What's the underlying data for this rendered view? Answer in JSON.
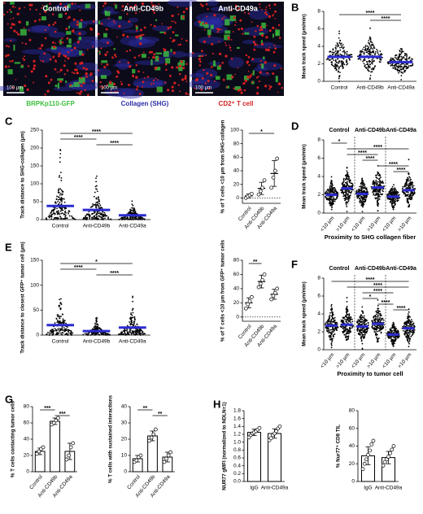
{
  "chart_data": [
    {
      "type": "image",
      "label": "A",
      "panels": [
        "Control",
        "Anti-CD49b",
        "Anti-CD49a"
      ],
      "scale_bar": "100 µm",
      "legend": [
        {
          "name": "BRPKp110-GFP",
          "color": "#3dbf3d"
        },
        {
          "name": "Collagen (SHG)",
          "color": "#2c2ca8"
        },
        {
          "name": "CD2⁺ T cell",
          "color": "#d42020"
        }
      ]
    },
    {
      "type": "swarm",
      "label": "B",
      "ylabel": "Mean track speed (µm/min)",
      "categories": [
        "Control",
        "Anti-CD49b",
        "Anti-CD49a"
      ],
      "values": [
        2.8,
        2.8,
        2.2
      ],
      "color": "#2b2bd0",
      "ylim": [
        0,
        8
      ],
      "yticks": [
        0,
        2,
        4,
        6,
        8
      ],
      "significance": [
        {
          "label": "****",
          "between": [
            0,
            2
          ]
        },
        {
          "label": "****",
          "between": [
            1,
            2
          ]
        }
      ]
    },
    {
      "type": "swarm",
      "label": "C",
      "ylabel": "Track distance to SHG-collagen (µm)",
      "categories": [
        "Control",
        "Anti-CD49b",
        "Anti-CD49a"
      ],
      "values": [
        38,
        27,
        12
      ],
      "color": "#2b2bd0",
      "ylim": [
        0,
        250
      ],
      "yticks": [
        0,
        50,
        100,
        150,
        200,
        250
      ],
      "significance": [
        {
          "label": "****",
          "between": [
            0,
            2
          ]
        },
        {
          "label": "****",
          "between": [
            0,
            1
          ]
        },
        {
          "label": "****",
          "between": [
            1,
            2
          ]
        }
      ]
    },
    {
      "type": "dot",
      "ylabel": "% of T cells <10 µm from SHG-collagen",
      "categories": [
        "Control",
        "Anti-CD49b",
        "Anti-CD49a"
      ],
      "values": [
        3,
        14,
        36
      ],
      "errors": [
        3,
        9,
        19
      ],
      "points": [
        [
          0,
          2,
          4,
          6
        ],
        [
          5,
          10,
          15,
          26
        ],
        [
          15,
          30,
          40,
          58
        ]
      ],
      "ylim": [
        -8,
        100
      ],
      "yticks": [
        0,
        20,
        40,
        60,
        80,
        100
      ],
      "significance": [
        {
          "label": "*",
          "between": [
            0,
            2
          ]
        }
      ]
    },
    {
      "type": "swarm",
      "label": "D",
      "ylabel": "Mean track speed (µm/min)",
      "groups": [
        "Control",
        "Anti-CD49b",
        "Anti-CD49a"
      ],
      "categories": [
        "<10 µm",
        ">10 µm",
        "<10 µm",
        ">10 µm",
        "<10 µm",
        ">10 µm"
      ],
      "xlabel": "Proximity to SHG collagen fiber",
      "values": [
        2.0,
        2.7,
        2.1,
        2.8,
        1.8,
        2.5
      ],
      "color": "#2b2bd0",
      "ylim": [
        0,
        8
      ],
      "yticks": [
        0,
        2,
        4,
        6,
        8
      ],
      "significance": [
        {
          "label": "*",
          "between": [
            0,
            1
          ]
        },
        {
          "label": "****",
          "between": [
            1,
            5
          ]
        },
        {
          "label": "****",
          "between": [
            1,
            3
          ]
        },
        {
          "label": "****",
          "between": [
            2,
            3
          ]
        },
        {
          "label": "****",
          "between": [
            3,
            5
          ]
        },
        {
          "label": "****",
          "between": [
            4,
            5
          ]
        }
      ]
    },
    {
      "type": "swarm",
      "label": "E",
      "ylabel": "Track distance to closest GFP⁺ tumor cell (µm)",
      "categories": [
        "Control",
        "Anti-CD49b",
        "Anti-CD49a"
      ],
      "values": [
        20,
        8,
        15
      ],
      "color": "#2b2bd0",
      "ylim": [
        0,
        150
      ],
      "yticks": [
        0,
        50,
        100,
        150
      ],
      "significance": [
        {
          "label": "*",
          "between": [
            0,
            2
          ]
        },
        {
          "label": "****",
          "between": [
            0,
            1
          ]
        },
        {
          "label": "****",
          "between": [
            1,
            2
          ]
        }
      ]
    },
    {
      "type": "dot",
      "ylabel": "% of T cells <10 µm from GFP⁺ tumor cells",
      "categories": [
        "Control",
        "Anti-CD49b",
        "Anti-CD49a"
      ],
      "values": [
        20,
        50,
        32
      ],
      "errors": [
        7,
        9,
        7
      ],
      "points": [
        [
          12,
          18,
          22,
          28
        ],
        [
          42,
          47,
          52,
          60
        ],
        [
          25,
          30,
          34,
          40
        ]
      ],
      "ylim": [
        -6,
        80
      ],
      "yticks": [
        0,
        20,
        40,
        60,
        80
      ],
      "significance": [
        {
          "label": "**",
          "between": [
            0,
            1
          ]
        }
      ]
    },
    {
      "type": "swarm",
      "label": "F",
      "ylabel": "Mean track speed (µm/min)",
      "groups": [
        "Control",
        "Anti-CD49b",
        "Anti-CD49a"
      ],
      "categories": [
        "<10 µm",
        ">10 µm",
        "<10 µm",
        ">10 µm",
        "<10 µm",
        ">10 µm"
      ],
      "xlabel": "Proximity to tumor cell",
      "values": [
        2.7,
        2.8,
        2.6,
        2.9,
        1.7,
        2.4
      ],
      "color": "#2b2bd0",
      "ylim": [
        0,
        8
      ],
      "yticks": [
        0,
        2,
        4,
        6,
        8
      ],
      "significance": [
        {
          "label": "****",
          "between": [
            0,
            5
          ]
        },
        {
          "label": "****",
          "between": [
            1,
            5
          ]
        },
        {
          "label": "****",
          "between": [
            2,
            4
          ]
        },
        {
          "label": "*",
          "between": [
            2,
            3
          ]
        },
        {
          "label": "****",
          "between": [
            3,
            4
          ]
        },
        {
          "label": "****",
          "between": [
            4,
            5
          ]
        }
      ]
    },
    {
      "type": "bar",
      "label": "G",
      "ylabel": "% T cells contacting tumor cells",
      "categories": [
        "Control",
        "Anti-CD49b",
        "Anti-CD49a"
      ],
      "values": [
        25,
        62,
        25
      ],
      "errors": [
        4,
        4,
        10
      ],
      "points": [
        [
          22,
          25,
          28,
          30
        ],
        [
          58,
          60,
          63,
          66
        ],
        [
          15,
          20,
          30,
          35
        ]
      ],
      "ylim": [
        0,
        80
      ],
      "yticks": [
        0,
        20,
        40,
        60,
        80
      ],
      "significance": [
        {
          "label": "***",
          "between": [
            0,
            1
          ]
        },
        {
          "label": "***",
          "between": [
            1,
            2
          ]
        }
      ]
    },
    {
      "type": "bar",
      "ylabel": "% T cells with sustained interactions",
      "categories": [
        "Control",
        "Anti-CD49b",
        "Anti-CD49a"
      ],
      "values": [
        8,
        22,
        9
      ],
      "errors": [
        2,
        3,
        3
      ],
      "points": [
        [
          6,
          7,
          9,
          10
        ],
        [
          19,
          21,
          23,
          26
        ],
        [
          6,
          8,
          10,
          12
        ]
      ],
      "ylim": [
        0,
        40
      ],
      "yticks": [
        0,
        10,
        20,
        30,
        40
      ],
      "significance": [
        {
          "label": "**",
          "between": [
            0,
            1
          ]
        },
        {
          "label": "**",
          "between": [
            1,
            2
          ]
        }
      ]
    },
    {
      "type": "bar",
      "label": "H",
      "ylabel": "NUR77 gMFI (normalized to NDLN=1)",
      "categories": [
        "IgG",
        "Anti-CD49a"
      ],
      "values": [
        1.25,
        1.22
      ],
      "errors": [
        0.08,
        0.12
      ],
      "points": [
        [
          1.12,
          1.18,
          1.22,
          1.25,
          1.28,
          1.32,
          1.36
        ],
        [
          1.05,
          1.1,
          1.18,
          1.22,
          1.28,
          1.35,
          1.4
        ]
      ],
      "ylim": [
        0,
        1.8
      ],
      "yticks": [
        {
          "value": 0,
          "label": "0.0"
        },
        0.2,
        0.4,
        0.6,
        0.8,
        {
          "value": 1,
          "label": "1.0"
        },
        1.2,
        1.4,
        1.6,
        1.8
      ],
      "significance": []
    },
    {
      "type": "bar",
      "ylabel": "% Nur77⁺ CD8 TIL",
      "categories": [
        "IgG",
        "Anti-CD49a"
      ],
      "values": [
        29,
        27
      ],
      "errors": [
        10,
        7
      ],
      "points": [
        [
          14,
          20,
          25,
          30,
          35,
          42,
          46
        ],
        [
          18,
          22,
          25,
          28,
          32,
          36,
          40
        ]
      ],
      "ylim": [
        0,
        80
      ],
      "yticks": [
        0,
        20,
        40,
        60,
        80
      ],
      "significance": []
    }
  ]
}
